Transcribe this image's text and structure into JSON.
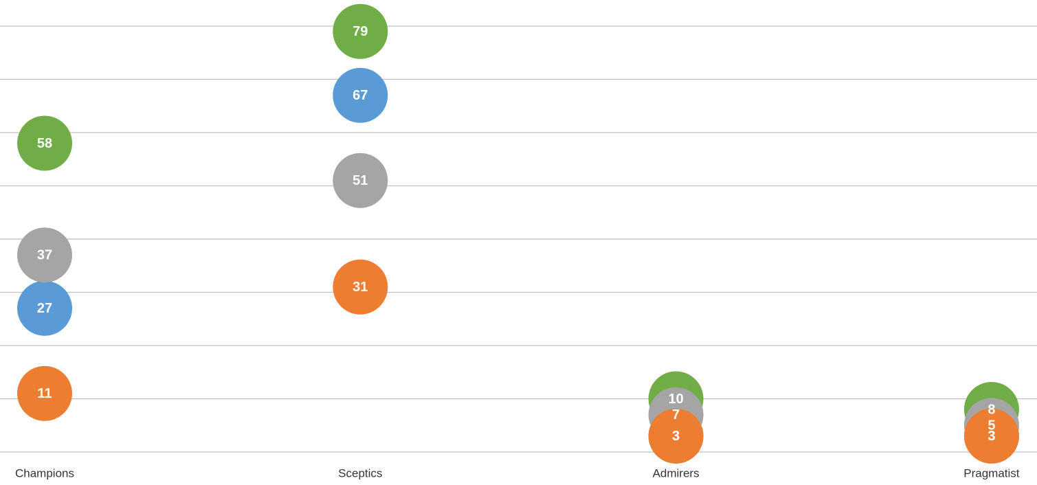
{
  "chart_data": {
    "type": "dot",
    "categories": [
      "Champions",
      "Sceptics",
      "Admirers",
      "Pragmatist"
    ],
    "series": [
      {
        "color": "#70ad47",
        "values": [
          58,
          79,
          10,
          8
        ]
      },
      {
        "color": "#5b9bd5",
        "values": [
          27,
          67,
          3,
          3
        ]
      },
      {
        "color": "#a5a5a5",
        "values": [
          37,
          51,
          7,
          5
        ]
      },
      {
        "color": "#ed7d31",
        "values": [
          11,
          31,
          3,
          3
        ]
      }
    ],
    "ylim": [
      0,
      80
    ],
    "yticks": [
      0,
      10,
      20,
      30,
      40,
      50,
      60,
      70,
      80
    ],
    "grid": true
  }
}
